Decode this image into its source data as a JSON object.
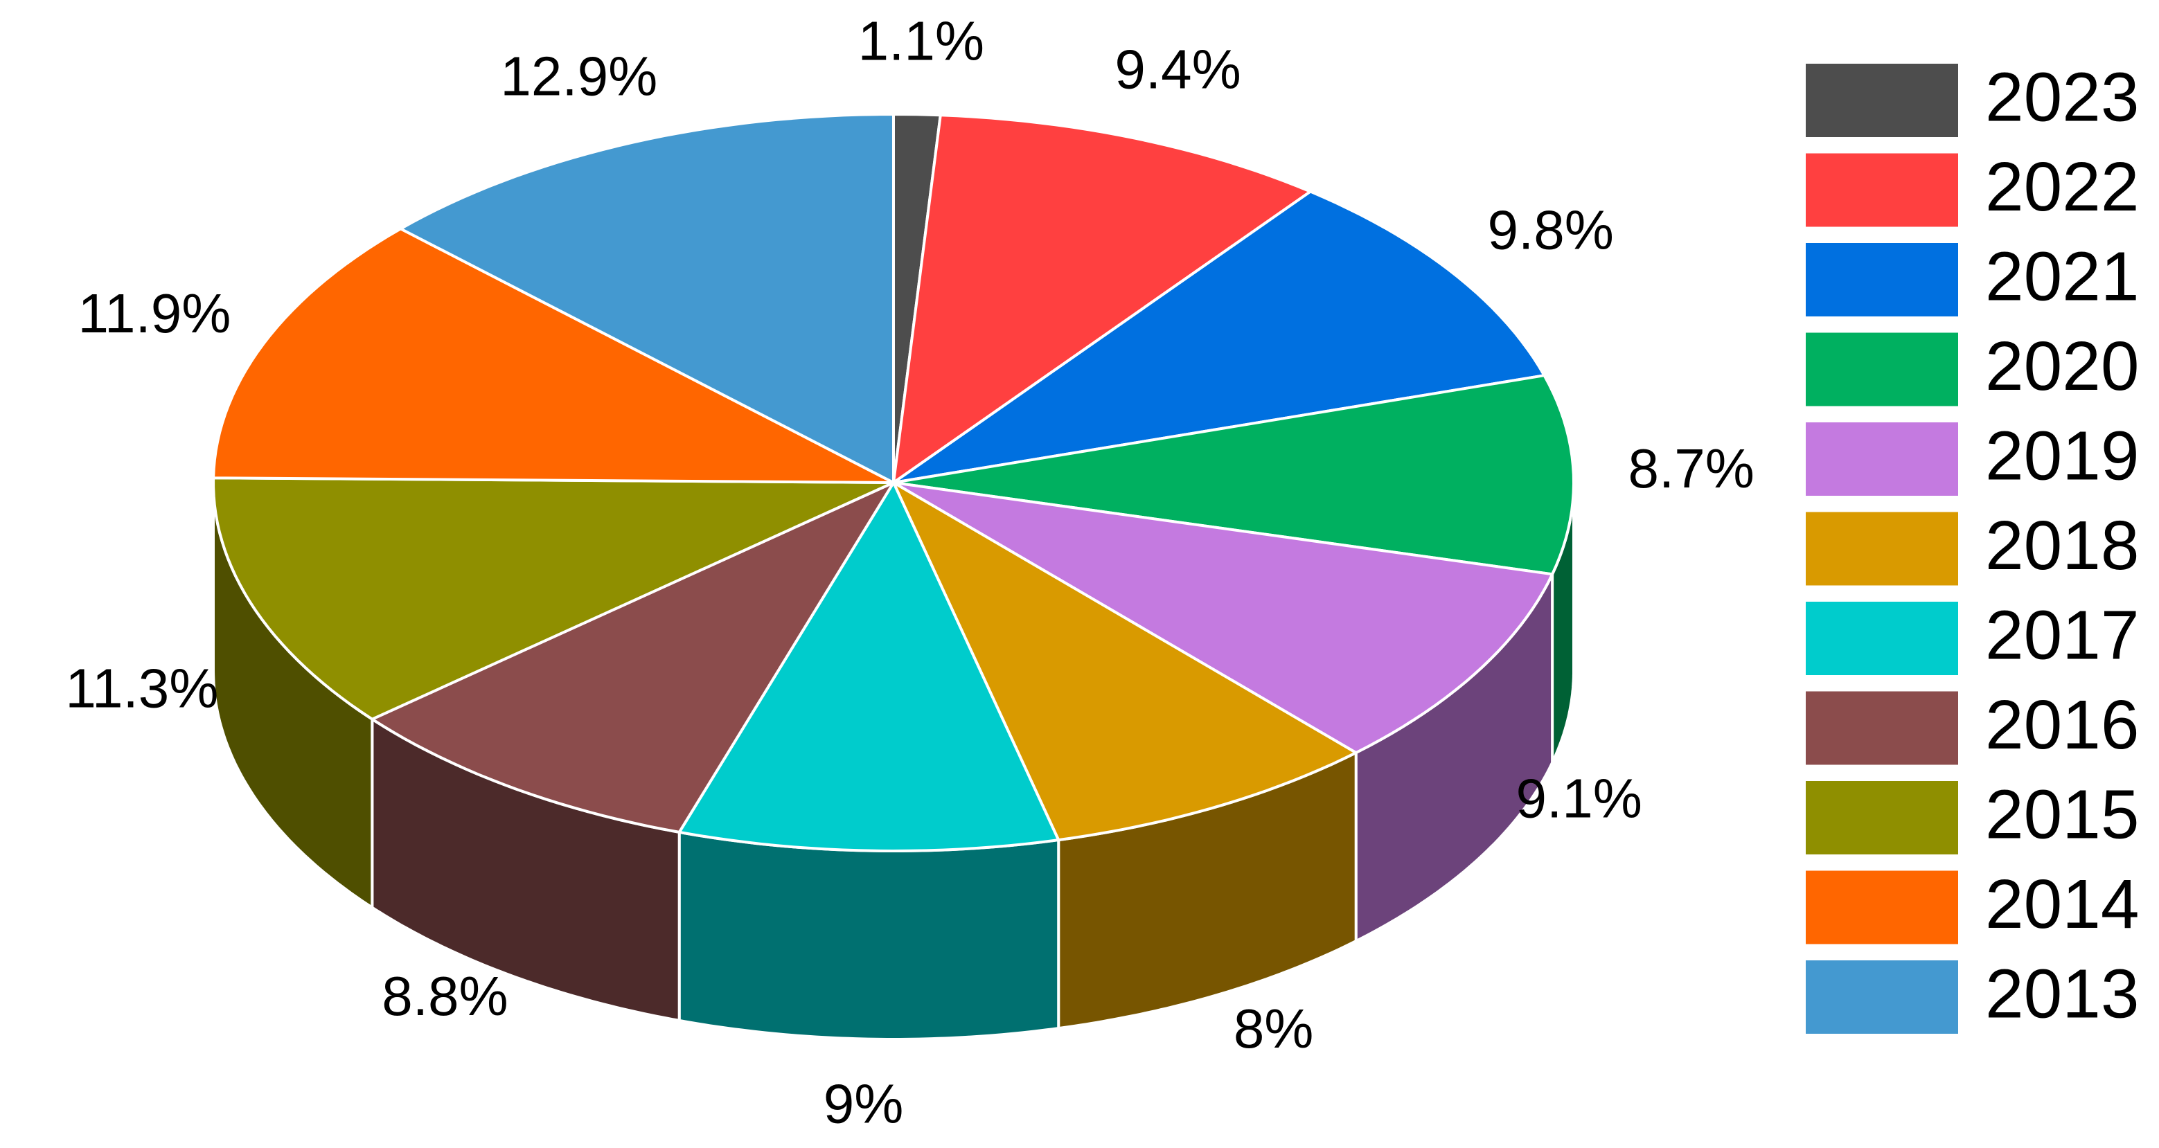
{
  "chart_data": {
    "type": "pie3d",
    "categories": [
      "2023",
      "2022",
      "2021",
      "2020",
      "2019",
      "2018",
      "2017",
      "2016",
      "2015",
      "2014",
      "2013"
    ],
    "values": [
      1.1,
      9.4,
      9.8,
      8.7,
      9.1,
      8,
      9,
      8.8,
      11.3,
      11.9,
      12.9
    ],
    "value_labels": [
      "1.1%",
      "9.4%",
      "9.8%",
      "8.7%",
      "9.1%",
      "8%",
      "9%",
      "8.8%",
      "11.3%",
      "11.9%",
      "12.9%"
    ],
    "colors": [
      "#4d4d4d",
      "#ff4040",
      "#0070e0",
      "#00b060",
      "#c47ae0",
      "#d99a00",
      "#00cccc",
      "#8b4c4c",
      "#8f8f00",
      "#ff6600",
      "#4499d0"
    ],
    "legend": "right"
  }
}
